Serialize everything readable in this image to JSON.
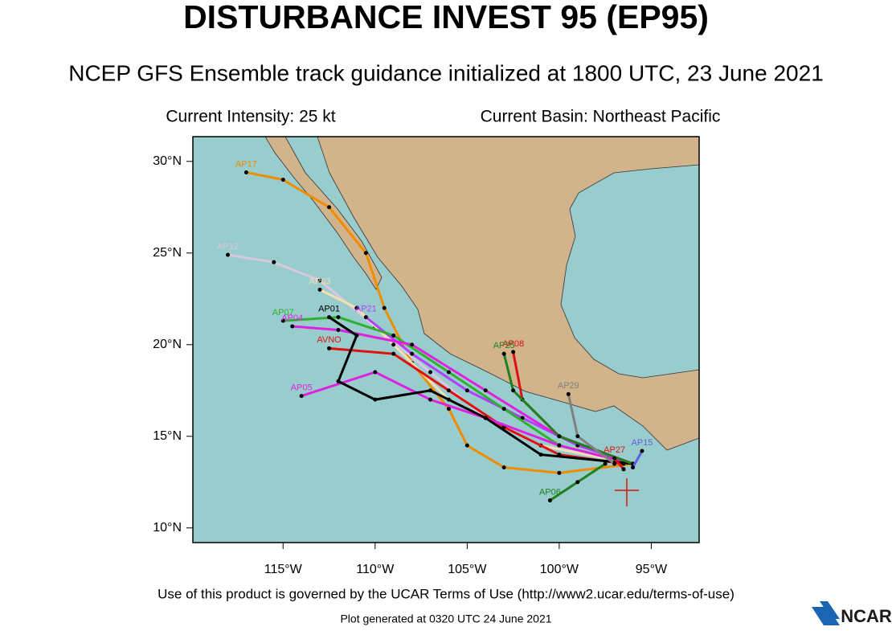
{
  "header": {
    "title": "DISTURBANCE INVEST 95 (EP95)",
    "subtitle": "NCEP GFS Ensemble track guidance initialized at 1800 UTC, 23 June 2021",
    "intensity": "Current Intensity: 25 kt",
    "basin": "Current Basin: Northeast Pacific"
  },
  "map": {
    "xlim": [
      -119.9,
      -92.4
    ],
    "ylim": [
      9.2,
      31.35
    ],
    "xticks": [
      {
        "value": -115,
        "label": "115°W"
      },
      {
        "value": -110,
        "label": "110°W"
      },
      {
        "value": -105,
        "label": "105°W"
      },
      {
        "value": -100,
        "label": "100°W"
      },
      {
        "value": -95,
        "label": "95°W"
      }
    ],
    "yticks": [
      {
        "value": 10,
        "label": "10°N"
      },
      {
        "value": 15,
        "label": "15°N"
      },
      {
        "value": 20,
        "label": "20°N"
      },
      {
        "value": 25,
        "label": "25°N"
      },
      {
        "value": 30,
        "label": "30°N"
      }
    ],
    "tracks": [
      {
        "name": "AP17",
        "color": "#f08c00",
        "lon": [
          -96,
          -100,
          -103,
          -105,
          -106,
          -108,
          -109.5,
          -110.5,
          -112.5,
          -115,
          -117
        ],
        "lat": [
          13.5,
          13,
          13.3,
          14.5,
          16.5,
          19,
          22,
          25,
          27.5,
          29,
          29.4
        ]
      },
      {
        "name": "AP12",
        "color": "#d8c8e0",
        "lon": [
          -96,
          -100,
          -104,
          -107,
          -110,
          -113,
          -115.5,
          -118
        ],
        "lat": [
          13.5,
          14.5,
          16,
          18.5,
          21,
          23.5,
          24.5,
          24.9
        ]
      },
      {
        "name": "AP03",
        "color": "#f5deb3",
        "lon": [
          -96,
          -101,
          -106,
          -109,
          -111,
          -113
        ],
        "lat": [
          13.5,
          14.5,
          17,
          20,
          22,
          23
        ]
      },
      {
        "name": "AP21",
        "color": "#b040ff",
        "lon": [
          -96,
          -99,
          -102,
          -105,
          -108,
          -110.5
        ],
        "lat": [
          13.5,
          14.5,
          16,
          17.5,
          19.5,
          21.5
        ]
      },
      {
        "name": "AP07",
        "color": "#30b030",
        "lon": [
          -96,
          -100,
          -103,
          -106,
          -109,
          -112,
          -115
        ],
        "lat": [
          13.5,
          14.5,
          16.5,
          18.5,
          20.5,
          21.5,
          21.3
        ]
      },
      {
        "name": "AP04",
        "color": "#e020e0",
        "lon": [
          -96,
          -100,
          -104,
          -108,
          -112,
          -114.5
        ],
        "lat": [
          13.5,
          15,
          17.5,
          20,
          20.8,
          21
        ]
      },
      {
        "name": "AVNO",
        "color": "#e01010",
        "lon": [
          -96.5,
          -100,
          -103,
          -106,
          -109,
          -112.5
        ],
        "lat": [
          13.5,
          14,
          15.5,
          17.5,
          19.5,
          19.8
        ]
      },
      {
        "name": "AP05",
        "color": "#e020e0",
        "lon": [
          -96,
          -100,
          -104,
          -107,
          -110,
          -114
        ],
        "lat": [
          13.5,
          14.5,
          16,
          17,
          18.5,
          17.2
        ]
      },
      {
        "name": "AP01",
        "color": "#000000",
        "lon": [
          -96,
          -101,
          -104,
          -107,
          -110,
          -112,
          -111,
          -112.5
        ],
        "lat": [
          13.5,
          14,
          16,
          17.5,
          17,
          18,
          20.5,
          21.5
        ]
      },
      {
        "name": "AP08",
        "color": "#e01010",
        "lon": [
          -96,
          -100,
          -102,
          -102.5
        ],
        "lat": [
          13.5,
          15,
          17,
          19.6
        ]
      },
      {
        "name": "AP25",
        "color": "#208020",
        "lon": [
          -96,
          -100,
          -102.5,
          -103
        ],
        "lat": [
          13.5,
          15,
          17.5,
          19.5
        ]
      },
      {
        "name": "AP29",
        "color": "#808080",
        "lon": [
          -97,
          -99,
          -99.5
        ],
        "lat": [
          13.5,
          15,
          17.3
        ]
      },
      {
        "name": "AP06",
        "color": "#208020",
        "lon": [
          -97.5,
          -99,
          -100.5
        ],
        "lat": [
          13.5,
          12.5,
          11.5
        ]
      },
      {
        "name": "AP15",
        "color": "#6060e0",
        "lon": [
          -96,
          -95.5
        ],
        "lat": [
          13.3,
          14.2
        ]
      },
      {
        "name": "AP27",
        "color": "#e01010",
        "lon": [
          -96.5,
          -97
        ],
        "lat": [
          13.2,
          13.8
        ]
      }
    ]
  },
  "footer": {
    "terms": "Use of this product is governed by the UCAR Terms of Use (http://www2.ucar.edu/terms-of-use)",
    "generated": "Plot generated at 0320 UTC   24 June 2021",
    "logo": "NCAR"
  }
}
